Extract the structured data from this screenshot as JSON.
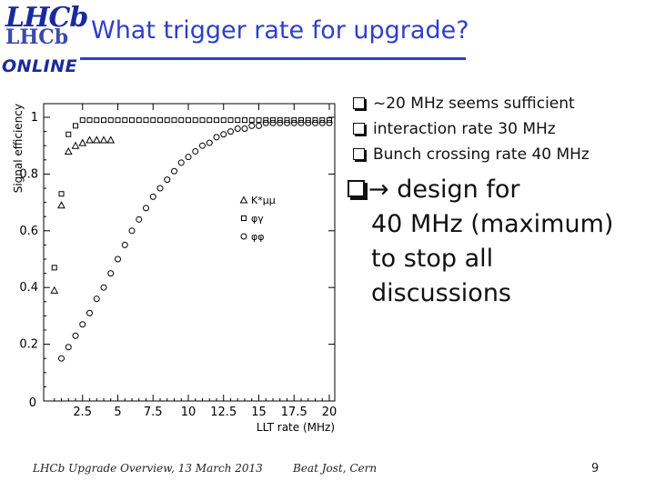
{
  "logo": {
    "text_top": "LHCb",
    "text_online": "ONLINE"
  },
  "slide": {
    "title": "What trigger rate for upgrade?",
    "bullets": [
      "~20 MHz seems sufficient",
      "interaction rate 30 MHz",
      "Bunch crossing rate 40 MHz"
    ],
    "conclusion": {
      "arrow": "→",
      "lines": [
        "design for",
        "40 MHz (maximum)",
        "to stop all",
        "discussions"
      ]
    }
  },
  "footer": {
    "left": "LHCb Upgrade Overview, 13 March 2013",
    "center": "Beat Jost, Cern",
    "page": "9"
  },
  "chart_data": {
    "type": "scatter",
    "xlabel": "LLT rate (MHz)",
    "ylabel": "Signal efficiency",
    "xlim": [
      0,
      20
    ],
    "ylim": [
      0,
      1.05
    ],
    "xticks": [
      2.5,
      5,
      7.5,
      10,
      12.5,
      15,
      17.5,
      20
    ],
    "xtick_labels": [
      "2.5",
      "5",
      "7.5",
      "10",
      "12.5",
      "15",
      "17.5",
      "20"
    ],
    "yticks": [
      0,
      0.2,
      0.4,
      0.6,
      0.8,
      1
    ],
    "ytick_labels": [
      "0",
      "0.2",
      "0.4",
      "0.6",
      "0.8",
      "1"
    ],
    "legend_position": "right",
    "series": [
      {
        "name": "K*μμ",
        "marker": "triangle",
        "x": [
          0.5,
          1,
          1.5,
          2,
          2.5,
          3,
          3.5,
          4,
          4.5
        ],
        "y": [
          0.39,
          0.69,
          0.88,
          0.9,
          0.91,
          0.92,
          0.92,
          0.92,
          0.92
        ]
      },
      {
        "name": "φγ",
        "marker": "square",
        "x": [
          0.5,
          1,
          1.5,
          2,
          2.5,
          3,
          3.5,
          4,
          4.5,
          5,
          5.5,
          6,
          6.5,
          7,
          7.5,
          8,
          8.5,
          9,
          9.5,
          10,
          10.5,
          11,
          11.5,
          12,
          12.5,
          13,
          13.5,
          14,
          14.5,
          15,
          15.5,
          16,
          16.5,
          17,
          17.5,
          18,
          18.5,
          19,
          19.5,
          20
        ],
        "y": [
          0.47,
          0.73,
          0.94,
          0.97,
          0.99,
          0.99,
          0.99,
          0.99,
          0.99,
          0.99,
          0.99,
          0.99,
          0.99,
          0.99,
          0.99,
          0.99,
          0.99,
          0.99,
          0.99,
          0.99,
          0.99,
          0.99,
          0.99,
          0.99,
          0.99,
          0.99,
          0.99,
          0.99,
          0.99,
          0.99,
          0.99,
          0.99,
          0.99,
          0.99,
          0.99,
          0.99,
          0.99,
          0.99,
          0.99,
          0.99
        ]
      },
      {
        "name": "φφ",
        "marker": "circle",
        "x": [
          1,
          1.5,
          2,
          2.5,
          3,
          3.5,
          4,
          4.5,
          5,
          5.5,
          6,
          6.5,
          7,
          7.5,
          8,
          8.5,
          9,
          9.5,
          10,
          10.5,
          11,
          11.5,
          12,
          12.5,
          13,
          13.5,
          14,
          14.5,
          15,
          15.5,
          16,
          16.5,
          17,
          17.5,
          18,
          18.5,
          19,
          19.5,
          20
        ],
        "y": [
          0.15,
          0.19,
          0.23,
          0.27,
          0.31,
          0.36,
          0.4,
          0.45,
          0.5,
          0.55,
          0.6,
          0.64,
          0.68,
          0.72,
          0.75,
          0.78,
          0.81,
          0.84,
          0.86,
          0.88,
          0.9,
          0.91,
          0.93,
          0.94,
          0.95,
          0.96,
          0.96,
          0.97,
          0.97,
          0.98,
          0.98,
          0.98,
          0.98,
          0.98,
          0.98,
          0.98,
          0.98,
          0.98,
          0.98
        ]
      }
    ]
  }
}
